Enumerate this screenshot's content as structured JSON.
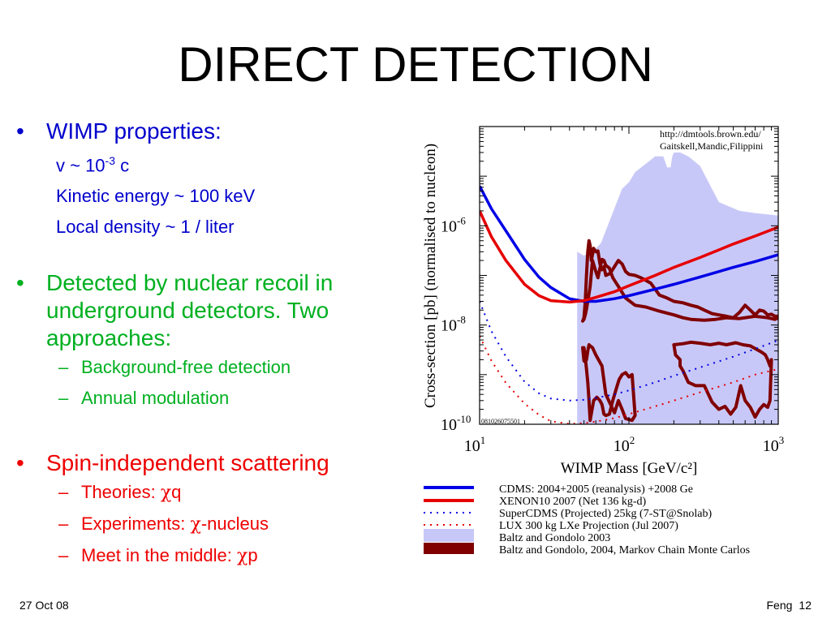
{
  "slide": {
    "title": "DIRECT DETECTION",
    "bullet1": {
      "head": "WIMP properties:",
      "v_prefix": "v ~ 10",
      "v_exp": "-3",
      "v_suffix": " c",
      "kinetic": "Kinetic energy ~ 100 keV",
      "density": "Local density ~ 1 / liter"
    },
    "bullet2": {
      "head": "Detected by nuclear recoil in underground detectors.  Two approaches:",
      "items": [
        "Background-free detection",
        "Annual modulation"
      ]
    },
    "bullet3": {
      "head": "Spin-independent scattering",
      "theories_prefix": "Theories: ",
      "theories_chi": "χ",
      "theories_suffix": "q",
      "experiments_prefix": "Experiments: ",
      "experiments_chi": "χ",
      "experiments_suffix": "-nucleus",
      "meet_prefix": "Meet in the middle: ",
      "meet_chi": "χ",
      "meet_suffix": "p"
    },
    "footer": {
      "date": "27 Oct 08",
      "author": "Feng",
      "page": "12"
    }
  },
  "chart_data": {
    "type": "line",
    "xlabel": "WIMP Mass [GeV/c²]",
    "ylabel": "Cross-section [pb] (normalised to nucleon)",
    "xscale": "log",
    "yscale": "log",
    "xlim": [
      10,
      1000
    ],
    "ylim": [
      1e-10,
      0.0001
    ],
    "xticks": [
      {
        "base": "10",
        "exp": "1"
      },
      {
        "base": "10",
        "exp": "2"
      },
      {
        "base": "10",
        "exp": "3"
      }
    ],
    "yticks": [
      {
        "base": "10",
        "exp": "-6"
      },
      {
        "base": "10",
        "exp": "-8"
      },
      {
        "base": "10",
        "exp": "-10"
      }
    ],
    "credit": [
      "http://dmtools.brown.edu/",
      "Gaitskell,Mandic,Filippini"
    ],
    "plot_id": "081026075501",
    "colors": {
      "cdms": "#0000e6",
      "xenon": "#e60000",
      "baltz03": "#c8c8f8",
      "baltz04": "#800000"
    },
    "legend": [
      "CDMS: 2004+2005 (reanalysis) +2008 Ge",
      "XENON10 2007 (Net 136 kg-d)",
      "SuperCDMS (Projected) 25kg (7-ST@Snolab)",
      "LUX 300 kg LXe Projection (Jul 2007)",
      "Baltz and Gondolo 2003",
      "Baltz and Gondolo, 2004, Markov Chain Monte Carlos"
    ],
    "series": [
      {
        "name": "CDMS: 2004+2005 (reanalysis) +2008 Ge",
        "style": "solid",
        "x": [
          10,
          12,
          15,
          20,
          25,
          30,
          40,
          50,
          60,
          80,
          100,
          150,
          200,
          300,
          500,
          700,
          1000
        ],
        "y": [
          6.3e-06,
          2.2e-06,
          7.9e-07,
          2.1e-07,
          9.2e-08,
          5.7e-08,
          3.4e-08,
          3e-08,
          3e-08,
          3.4e-08,
          3.9e-08,
          5.3e-08,
          6.6e-08,
          9.3e-08,
          1.45e-07,
          1.9e-07,
          2.6e-07
        ]
      },
      {
        "name": "XENON10 2007 (Net 136 kg-d)",
        "style": "solid",
        "x": [
          10,
          12,
          15,
          20,
          25,
          30,
          40,
          50,
          60,
          80,
          100,
          150,
          200,
          300,
          500,
          700,
          1000
        ],
        "y": [
          2e-06,
          6e-07,
          2e-07,
          6.6e-08,
          3.9e-08,
          3.1e-08,
          2.9e-08,
          3.1e-08,
          3.6e-08,
          4.7e-08,
          6.2e-08,
          1e-07,
          1.45e-07,
          2.3e-07,
          4.3e-07,
          6.2e-07,
          9.4e-07
        ]
      },
      {
        "name": "SuperCDMS (Projected) 25kg (7-ST@Snolab)",
        "style": "dotted",
        "x": [
          10,
          12,
          15,
          20,
          25,
          30,
          40,
          50,
          60,
          80,
          100,
          150,
          200,
          300,
          500,
          700,
          1000
        ],
        "y": [
          3e-08,
          7.5e-09,
          2.3e-09,
          7.2e-10,
          4.2e-10,
          3.3e-10,
          3e-10,
          3.1e-10,
          3.4e-10,
          4e-10,
          4.8e-10,
          7e-10,
          9.5e-10,
          1.4e-09,
          2.3e-09,
          3.3e-09,
          4.9e-09
        ]
      },
      {
        "name": "LUX 300 kg LXe Projection (Jul 2007)",
        "style": "dotted",
        "x": [
          10,
          12,
          15,
          20,
          25,
          30,
          40,
          50,
          60,
          80,
          100,
          150,
          200,
          300,
          500,
          700,
          1000
        ],
        "y": [
          6e-09,
          1.9e-09,
          6.8e-10,
          2.6e-10,
          1.55e-10,
          1.15e-10,
          1.02e-10,
          1.05e-10,
          1.13e-10,
          1.33e-10,
          1.6e-10,
          2.3e-10,
          3e-10,
          4.4e-10,
          7e-10,
          1e-09,
          1.3e-09
        ]
      }
    ],
    "regions": [
      {
        "name": "Baltz and Gondolo 2003",
        "style": "fill",
        "x": [
          45,
          50,
          55,
          60,
          65,
          90,
          100,
          110,
          150,
          170,
          180,
          190,
          195,
          200,
          220,
          250,
          300,
          400,
          550,
          700,
          850,
          1000,
          1000,
          700,
          400,
          200,
          100,
          70,
          55,
          50,
          47,
          45
        ],
        "y": [
          3e-07,
          2.5e-07,
          3e-07,
          3.5e-07,
          4.5e-07,
          5.6e-06,
          7.5e-06,
          1.2e-05,
          2.5e-05,
          2.5e-05,
          1.5e-05,
          1.5e-05,
          2.5e-05,
          3e-05,
          3e-05,
          2.5e-05,
          1.6e-05,
          3e-06,
          2e-06,
          1.8e-06,
          1.7e-06,
          1.6e-06,
          1e-10,
          1e-10,
          1e-10,
          1e-10,
          1e-10,
          1e-10,
          1e-10,
          1e-10,
          1e-10,
          1e-10
        ]
      },
      {
        "name": "Baltz and Gondolo, 2004, Markov Chain Monte Carlos",
        "style": "outline",
        "x": [
          49,
          50,
          51,
          52,
          53,
          54,
          55,
          56,
          58,
          60,
          62,
          64,
          66,
          68,
          70,
          75,
          80,
          85,
          90,
          95,
          100,
          110,
          120,
          140,
          160,
          180,
          200,
          230,
          260,
          290,
          320,
          360,
          400,
          450,
          500,
          550,
          600,
          650,
          700,
          750,
          800,
          850,
          900,
          950,
          1000,
          1000,
          950,
          850,
          700,
          550,
          450,
          380,
          320,
          260,
          230,
          200,
          160,
          130,
          110,
          95,
          85,
          78,
          74,
          70,
          68,
          66,
          64,
          62,
          60,
          57,
          55,
          53,
          52,
          51,
          50,
          49
        ],
        "y": [
          1.2e-08,
          1.4e-08,
          3e-08,
          1e-07,
          3e-07,
          5e-07,
          4e-07,
          2e-07,
          3.5e-07,
          3e-07,
          3.1e-07,
          1.7e-07,
          1.3e-07,
          1.5e-07,
          1e-07,
          1.1e-07,
          1.5e-07,
          2e-07,
          1.7e-07,
          1.2e-07,
          1.05e-07,
          1e-07,
          9e-08,
          7e-08,
          4e-08,
          3.5e-08,
          3e-08,
          2.8e-08,
          2.5e-08,
          2.3e-08,
          2e-08,
          1.7e-08,
          1.6e-08,
          1.5e-08,
          1.4e-08,
          1.8e-08,
          2.5e-08,
          2e-08,
          1.6e-08,
          2e-08,
          1.9e-08,
          1.6e-08,
          1.65e-08,
          1.5e-08,
          1.5e-08,
          1.4e-08,
          1.3e-08,
          1.4e-08,
          1.5e-08,
          1.35e-08,
          1.4e-08,
          1.3e-08,
          1.25e-08,
          1.3e-08,
          1.4e-08,
          1.6e-08,
          1.9e-08,
          2.3e-08,
          2.5e-08,
          3.5e-08,
          6e-08,
          9e-08,
          1.4e-07,
          1.6e-07,
          2e-07,
          2.1e-07,
          1.4e-07,
          9e-08,
          1.2e-07,
          2e-07,
          6e-08,
          3e-08,
          2.1e-08,
          1.6e-08,
          1.3e-08,
          1.2e-08
        ]
      },
      {
        "name": "Baltz and Gondolo, 2004, Markov Chain Monte Carlos",
        "style": "outline",
        "x": [
          49,
          50,
          51,
          52,
          53,
          54,
          55,
          58,
          61,
          64,
          66,
          68,
          70,
          74,
          78,
          82,
          86,
          90,
          95,
          100,
          105,
          110,
          105,
          95,
          90,
          85,
          80,
          70,
          66,
          60,
          57,
          55,
          54,
          53,
          52,
          51,
          50,
          49
        ],
        "y": [
          3.5e-09,
          3.5e-09,
          2.2e-09,
          1.3e-09,
          7e-10,
          3e-10,
          1.2e-10,
          3e-10,
          3.5e-10,
          3e-10,
          2.5e-10,
          1.6e-10,
          1.5e-10,
          1.6e-10,
          3e-10,
          5e-10,
          8e-10,
          1e-09,
          1.1e-09,
          9e-10,
          1e-09,
          1.5e-10,
          1.2e-10,
          1.3e-10,
          2e-10,
          3e-10,
          1.7e-10,
          4e-10,
          1.5e-09,
          2.5e-09,
          3.5e-09,
          3.8e-09,
          4e-09,
          3e-09,
          2e-09,
          1.8e-09,
          1.9e-09,
          3.5e-09
        ]
      },
      {
        "name": "Baltz and Gondolo, 2004, Markov Chain Monte Carlos",
        "style": "outline",
        "x": [
          200,
          230,
          260,
          300,
          350,
          400,
          450,
          520,
          580,
          650,
          720,
          780,
          820,
          850,
          880,
          900,
          880,
          850,
          800,
          750,
          700,
          650,
          600,
          560,
          520,
          480,
          440,
          400,
          360,
          320,
          280,
          250,
          230,
          220,
          220,
          205,
          200
        ],
        "y": [
          4e-09,
          4.2e-09,
          4.5e-09,
          4.3e-09,
          4e-09,
          4.3e-09,
          4e-09,
          4.4e-09,
          4e-09,
          3.8e-09,
          3.2e-09,
          2.8e-09,
          2.5e-09,
          2e-09,
          1.5e-09,
          2e-09,
          3e-10,
          2.2e-10,
          2.5e-10,
          2e-10,
          1.4e-10,
          2.2e-10,
          3e-10,
          6e-10,
          2.2e-10,
          1.6e-10,
          2.3e-10,
          2e-10,
          2.8e-10,
          6e-10,
          6e-10,
          7e-10,
          1.2e-09,
          1.5e-09,
          2e-09,
          2.5e-09,
          4e-09
        ]
      }
    ]
  }
}
